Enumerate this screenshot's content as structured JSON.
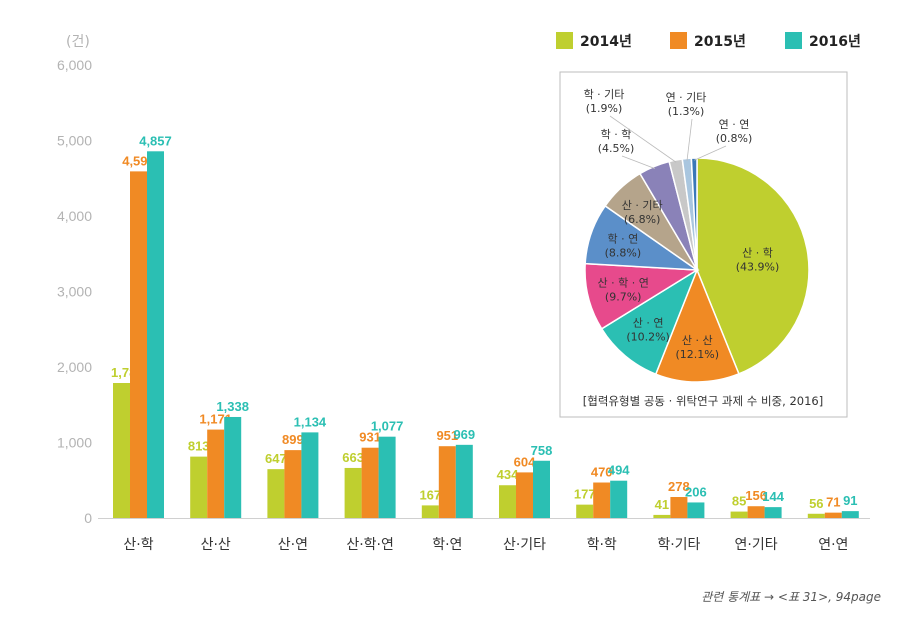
{
  "chart_data": [
    {
      "type": "bar",
      "unit": "(건)",
      "ylim": [
        0,
        6000
      ],
      "yticks": [
        "0",
        "1,000",
        "2,000",
        "3,000",
        "4,000",
        "5,000",
        "6,000"
      ],
      "categories": [
        "산·학",
        "산·산",
        "산·연",
        "산·학·연",
        "학·연",
        "산·기타",
        "학·학",
        "학·기타",
        "연·기타",
        "연·연"
      ],
      "series": [
        {
          "name": "2014년",
          "color": "#bfcf2f",
          "values": [
            1788,
            813,
            647,
            663,
            167,
            434,
            177,
            41,
            85,
            56
          ],
          "labels": [
            "1,788",
            "813",
            "647",
            "663",
            "167",
            "434",
            "177",
            "41",
            "85",
            "56"
          ]
        },
        {
          "name": "2015년",
          "color": "#f08a24",
          "values": [
            4591,
            1171,
            899,
            931,
            951,
            604,
            470,
            278,
            156,
            71
          ],
          "labels": [
            "4,591",
            "1,171",
            "899",
            "931",
            "951",
            "604",
            "470",
            "278",
            "156",
            "71"
          ]
        },
        {
          "name": "2016년",
          "color": "#2bbfb3",
          "values": [
            4857,
            1338,
            1134,
            1077,
            969,
            758,
            494,
            206,
            144,
            91
          ],
          "labels": [
            "4,857",
            "1,338",
            "1,134",
            "1,077",
            "969",
            "758",
            "494",
            "206",
            "144",
            "91"
          ]
        }
      ],
      "legend_position": "top-right",
      "grid": false
    },
    {
      "type": "pie",
      "title": "[협력유형별 공동 · 위탁연구 과제 수 비중, 2016]",
      "slices": [
        {
          "label": "산 · 학",
          "pct_text": "(43.9%)",
          "value": 43.9,
          "color": "#bfcf2f"
        },
        {
          "label": "산 · 산",
          "pct_text": "(12.1%)",
          "value": 12.1,
          "color": "#f08a24"
        },
        {
          "label": "산 · 연",
          "pct_text": "(10.2%)",
          "value": 10.2,
          "color": "#2bbfb3"
        },
        {
          "label": "산 · 학 · 연",
          "pct_text": "(9.7%)",
          "value": 9.7,
          "color": "#e74a8c"
        },
        {
          "label": "학 · 연",
          "pct_text": "(8.8%)",
          "value": 8.8,
          "color": "#5b8fc9"
        },
        {
          "label": "산 · 기타",
          "pct_text": "(6.8%)",
          "value": 6.8,
          "color": "#b5a48b"
        },
        {
          "label": "학 · 학",
          "pct_text": "(4.5%)",
          "value": 4.5,
          "color": "#8a82b8"
        },
        {
          "label": "학 · 기타",
          "pct_text": "(1.9%)",
          "value": 1.9,
          "color": "#c8c8c8"
        },
        {
          "label": "연 · 기타",
          "pct_text": "(1.3%)",
          "value": 1.3,
          "color": "#a9c6df"
        },
        {
          "label": "연 · 연",
          "pct_text": "(0.8%)",
          "value": 0.8,
          "color": "#3a78b8"
        }
      ]
    }
  ],
  "footnote": "관련 통계표 → <표 31>, 94page"
}
